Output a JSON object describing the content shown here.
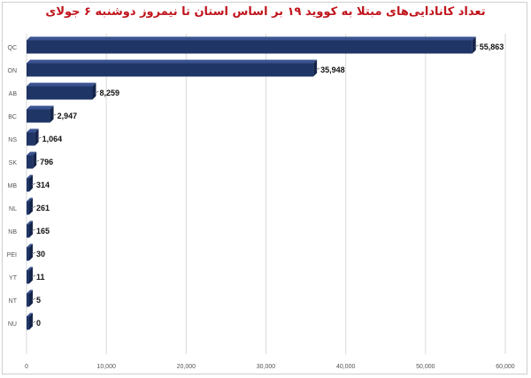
{
  "chart_data": {
    "type": "bar",
    "orientation": "horizontal",
    "title": "تعداد کانادایی‌های مبتلا به کووید ۱۹ بر اساس استان تا نیمروز دوشنبه ۶ جولای",
    "categories": [
      "QC",
      "ON",
      "AB",
      "BC",
      "NS",
      "SK",
      "MB",
      "NL",
      "NB",
      "PEI",
      "YT",
      "NT",
      "NU"
    ],
    "values": [
      55863,
      35948,
      8259,
      2947,
      1064,
      796,
      314,
      261,
      165,
      30,
      11,
      5,
      0
    ],
    "value_labels": [
      "55,863",
      "35,948",
      "8,259",
      "2,947",
      "1,064",
      "796",
      "314",
      "261",
      "165",
      "30",
      "11",
      "5",
      "0"
    ],
    "xlim": [
      0,
      60000
    ],
    "x_ticks": [
      "0",
      "10,000",
      "20,000",
      "30,000",
      "40,000",
      "50,000",
      "60,000"
    ],
    "grid": true,
    "colors": {
      "bar": "#1f3566",
      "bar_side": "#14244a",
      "bar_top": "#3a5290",
      "grid": "#d9d9d9",
      "title": "#c0141c"
    }
  }
}
